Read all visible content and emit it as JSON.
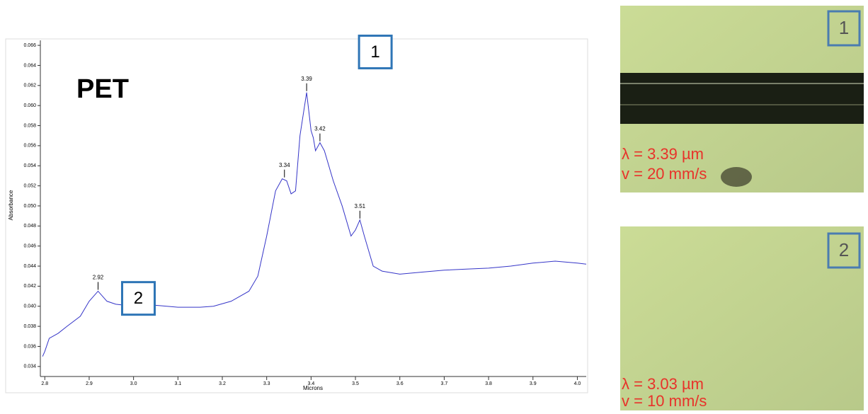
{
  "chart_data": {
    "type": "line",
    "title": "PET",
    "x_label": "Microns",
    "y_label": "Absorbance",
    "xlim": [
      2.79,
      4.02
    ],
    "xticks": [
      2.8,
      2.9,
      {
        "value": 3,
        "label": "3.0"
      },
      3.1,
      3.2,
      3.3,
      3.4,
      3.5,
      3.6,
      3.7,
      3.8,
      3.9,
      {
        "value": 4,
        "label": "4.0"
      }
    ],
    "ylim": [
      0.033,
      0.0665
    ],
    "yticks": [
      0.034,
      0.036,
      0.038,
      {
        "value": 0.04,
        "label": "0.040"
      },
      0.042,
      0.044,
      0.046,
      0.048,
      {
        "value": 0.05,
        "label": "0.050"
      },
      0.052,
      0.054,
      0.056,
      0.058,
      {
        "value": 0.06,
        "label": "0.060"
      },
      0.062,
      0.064,
      0.066
    ],
    "series": [
      {
        "color": "#3535c8",
        "x": [
          2.795,
          2.8,
          2.81,
          2.83,
          2.85,
          2.88,
          2.9,
          2.92,
          2.94,
          2.96,
          3.0,
          3.05,
          3.1,
          3.15,
          3.18,
          3.22,
          3.26,
          3.28,
          3.3,
          3.32,
          3.335,
          3.345,
          3.355,
          3.365,
          3.375,
          3.39,
          3.4,
          3.405,
          3.41,
          3.42,
          3.43,
          3.45,
          3.47,
          3.49,
          3.5,
          3.51,
          3.52,
          3.54,
          3.56,
          3.6,
          3.65,
          3.7,
          3.75,
          3.8,
          3.85,
          3.9,
          3.95,
          4.0,
          4.02
        ],
        "values": [
          0.035,
          0.0355,
          0.0368,
          0.0373,
          0.038,
          0.039,
          0.0405,
          0.0415,
          0.0405,
          0.0402,
          0.04,
          0.0401,
          0.0399,
          0.0399,
          0.04,
          0.0405,
          0.0415,
          0.043,
          0.047,
          0.0515,
          0.0527,
          0.0525,
          0.0512,
          0.0515,
          0.057,
          0.0613,
          0.0575,
          0.0568,
          0.0555,
          0.0563,
          0.0555,
          0.0525,
          0.05,
          0.047,
          0.0476,
          0.0486,
          0.047,
          0.044,
          0.0435,
          0.0432,
          0.0434,
          0.0436,
          0.0437,
          0.0438,
          0.044,
          0.0443,
          0.0445,
          0.0443,
          0.0442
        ]
      }
    ],
    "peaks": [
      {
        "x": 2.92,
        "y": 0.0415
      },
      {
        "x": 3.34,
        "y": 0.0527
      },
      {
        "x": 3.39,
        "y": 0.0613
      },
      {
        "x": 3.42,
        "y": 0.0563
      },
      {
        "x": 3.51,
        "y": 0.0486
      }
    ],
    "callouts": [
      {
        "label": "1",
        "x": 3.39,
        "y": 0.0585
      },
      {
        "label": "2",
        "x": 2.92,
        "y": 0.0405
      }
    ]
  },
  "images": [
    {
      "tag": "1",
      "lines": [
        "λ = 3.39 µm",
        "v = 20 mm/s"
      ]
    },
    {
      "tag": "2",
      "lines": [
        "λ = 3.03 µm",
        "v = 10 mm/s"
      ]
    }
  ]
}
